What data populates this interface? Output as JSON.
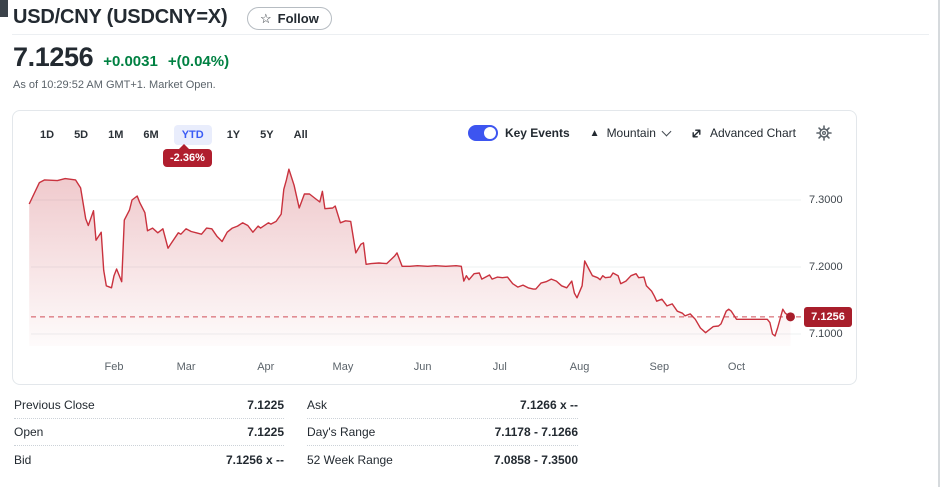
{
  "header": {
    "title": "USD/CNY (USDCNY=X)",
    "follow_label": "Follow",
    "star_glyph": "☆"
  },
  "quote": {
    "price": "7.1256",
    "change": "+0.0031",
    "change_percent": "+(0.04%)",
    "as_of": "As of 10:29:52 AM GMT+1. Market Open."
  },
  "toolbar": {
    "ranges": [
      "1D",
      "5D",
      "1M",
      "6M",
      "YTD",
      "1Y",
      "5Y",
      "All"
    ],
    "active_range": "YTD",
    "range_change_badge": "-2.36%",
    "key_events_label": "Key Events",
    "key_events_on": true,
    "chart_type_label": "Mountain",
    "chart_type_glyph": "▲",
    "advanced_chart_label": "Advanced Chart"
  },
  "chart": {
    "current_price_label": "7.1256",
    "y_axis_labels": [
      "7.3000",
      "7.2000",
      "7.1000"
    ]
  },
  "colors": {
    "line_red": "#c9323e",
    "fill_red": "#c63a45",
    "badge_red": "#a81e2b",
    "accent_blue": "#3b5cf5",
    "positive_green": "#008142",
    "grid_gray": "#eef0f2",
    "axis_text": "#5b636a"
  },
  "chart_data": {
    "type": "area",
    "title": "USD/CNY YTD mountain chart",
    "x_unit": "day_of_year",
    "x_axis_labels": [
      "Feb",
      "Mar",
      "Apr",
      "May",
      "Jun",
      "Jul",
      "Aug",
      "Sep",
      "Oct"
    ],
    "month_start_days": [
      31,
      59,
      90,
      120,
      151,
      181,
      212,
      243,
      273
    ],
    "y_ticks": [
      7.3,
      7.2,
      7.1
    ],
    "y_tick_labels": [
      "7.3000",
      "7.2000",
      "7.1000"
    ],
    "ylim": [
      7.085,
      7.365
    ],
    "current_price": 7.1256,
    "ytd_change_percent": -2.36,
    "legend_position": "none",
    "grid": true,
    "points": [
      [
        -2,
        7.294
      ],
      [
        2,
        7.326
      ],
      [
        4,
        7.33
      ],
      [
        9,
        7.329
      ],
      [
        12,
        7.332
      ],
      [
        16,
        7.33
      ],
      [
        18,
        7.318
      ],
      [
        20,
        7.272
      ],
      [
        21,
        7.262
      ],
      [
        23,
        7.284
      ],
      [
        24,
        7.24
      ],
      [
        26,
        7.252
      ],
      [
        27,
        7.195
      ],
      [
        28,
        7.172
      ],
      [
        30,
        7.169
      ],
      [
        31,
        7.187
      ],
      [
        32,
        7.197
      ],
      [
        34,
        7.178
      ],
      [
        35,
        7.27
      ],
      [
        37,
        7.285
      ],
      [
        38,
        7.3
      ],
      [
        40,
        7.306
      ],
      [
        41,
        7.296
      ],
      [
        43,
        7.281
      ],
      [
        44,
        7.254
      ],
      [
        46,
        7.258
      ],
      [
        48,
        7.251
      ],
      [
        50,
        7.257
      ],
      [
        52,
        7.228
      ],
      [
        53,
        7.234
      ],
      [
        56,
        7.251
      ],
      [
        57,
        7.249
      ],
      [
        59,
        7.257
      ],
      [
        61,
        7.253
      ],
      [
        63,
        7.251
      ],
      [
        65,
        7.249
      ],
      [
        67,
        7.258
      ],
      [
        69,
        7.257
      ],
      [
        71,
        7.246
      ],
      [
        73,
        7.238
      ],
      [
        75,
        7.252
      ],
      [
        77,
        7.258
      ],
      [
        79,
        7.261
      ],
      [
        81,
        7.266
      ],
      [
        83,
        7.262
      ],
      [
        85,
        7.252
      ],
      [
        87,
        7.261
      ],
      [
        88,
        7.258
      ],
      [
        91,
        7.266
      ],
      [
        92,
        7.264
      ],
      [
        94,
        7.268
      ],
      [
        96,
        7.279
      ],
      [
        97,
        7.316
      ],
      [
        98,
        7.33
      ],
      [
        99,
        7.346
      ],
      [
        101,
        7.322
      ],
      [
        103,
        7.288
      ],
      [
        105,
        7.309
      ],
      [
        107,
        7.309
      ],
      [
        109,
        7.303
      ],
      [
        111,
        7.297
      ],
      [
        112,
        7.313
      ],
      [
        113,
        7.287
      ],
      [
        116,
        7.288
      ],
      [
        117,
        7.291
      ],
      [
        119,
        7.266
      ],
      [
        121,
        7.269
      ],
      [
        123,
        7.268
      ],
      [
        125,
        7.221
      ],
      [
        127,
        7.234
      ],
      [
        128,
        7.236
      ],
      [
        129,
        7.204
      ],
      [
        131,
        7.205
      ],
      [
        134,
        7.206
      ],
      [
        137,
        7.205
      ],
      [
        140,
        7.216
      ],
      [
        141,
        7.221
      ],
      [
        143,
        7.201
      ],
      [
        146,
        7.201
      ],
      [
        149,
        7.202
      ],
      [
        153,
        7.201
      ],
      [
        156,
        7.202
      ],
      [
        160,
        7.201
      ],
      [
        164,
        7.202
      ],
      [
        166,
        7.201
      ],
      [
        167,
        7.179
      ],
      [
        168,
        7.187
      ],
      [
        169,
        7.181
      ],
      [
        171,
        7.19
      ],
      [
        173,
        7.191
      ],
      [
        174,
        7.182
      ],
      [
        177,
        7.188
      ],
      [
        178,
        7.182
      ],
      [
        180,
        7.185
      ],
      [
        182,
        7.184
      ],
      [
        184,
        7.185
      ],
      [
        186,
        7.175
      ],
      [
        188,
        7.17
      ],
      [
        190,
        7.173
      ],
      [
        192,
        7.169
      ],
      [
        194,
        7.167
      ],
      [
        195,
        7.167
      ],
      [
        197,
        7.176
      ],
      [
        199,
        7.178
      ],
      [
        201,
        7.182
      ],
      [
        203,
        7.179
      ],
      [
        205,
        7.172
      ],
      [
        207,
        7.169
      ],
      [
        209,
        7.179
      ],
      [
        210,
        7.161
      ],
      [
        211,
        7.154
      ],
      [
        213,
        7.172
      ],
      [
        214,
        7.209
      ],
      [
        216,
        7.194
      ],
      [
        217,
        7.187
      ],
      [
        219,
        7.184
      ],
      [
        220,
        7.181
      ],
      [
        221,
        7.187
      ],
      [
        222,
        7.184
      ],
      [
        224,
        7.185
      ],
      [
        225,
        7.191
      ],
      [
        227,
        7.187
      ],
      [
        228,
        7.175
      ],
      [
        230,
        7.179
      ],
      [
        232,
        7.187
      ],
      [
        234,
        7.19
      ],
      [
        235,
        7.184
      ],
      [
        237,
        7.185
      ],
      [
        238,
        7.172
      ],
      [
        240,
        7.164
      ],
      [
        241,
        7.157
      ],
      [
        242,
        7.149
      ],
      [
        244,
        7.152
      ],
      [
        246,
        7.142
      ],
      [
        248,
        7.145
      ],
      [
        250,
        7.134
      ],
      [
        252,
        7.131
      ],
      [
        253,
        7.127
      ],
      [
        255,
        7.13
      ],
      [
        257,
        7.122
      ],
      [
        259,
        7.109
      ],
      [
        261,
        7.102
      ],
      [
        262,
        7.105
      ],
      [
        264,
        7.111
      ],
      [
        266,
        7.112
      ],
      [
        267,
        7.115
      ],
      [
        269,
        7.134
      ],
      [
        270,
        7.137
      ],
      [
        271,
        7.134
      ],
      [
        273,
        7.122
      ],
      [
        277,
        7.122
      ],
      [
        282,
        7.122
      ],
      [
        285,
        7.122
      ],
      [
        286,
        7.117
      ],
      [
        287,
        7.1
      ],
      [
        288,
        7.097
      ],
      [
        289,
        7.109
      ],
      [
        291,
        7.137
      ],
      [
        292,
        7.131
      ],
      [
        293,
        7.128
      ],
      [
        294,
        7.1256
      ]
    ]
  },
  "stats": {
    "left": [
      {
        "label": "Previous Close",
        "value": "7.1225"
      },
      {
        "label": "Open",
        "value": "7.1225"
      },
      {
        "label": "Bid",
        "value": "7.1256 x --"
      }
    ],
    "right": [
      {
        "label": "Ask",
        "value": "7.1266 x --"
      },
      {
        "label": "Day's Range",
        "value": "7.1178 - 7.1266"
      },
      {
        "label": "52 Week Range",
        "value": "7.0858 - 7.3500"
      }
    ]
  }
}
